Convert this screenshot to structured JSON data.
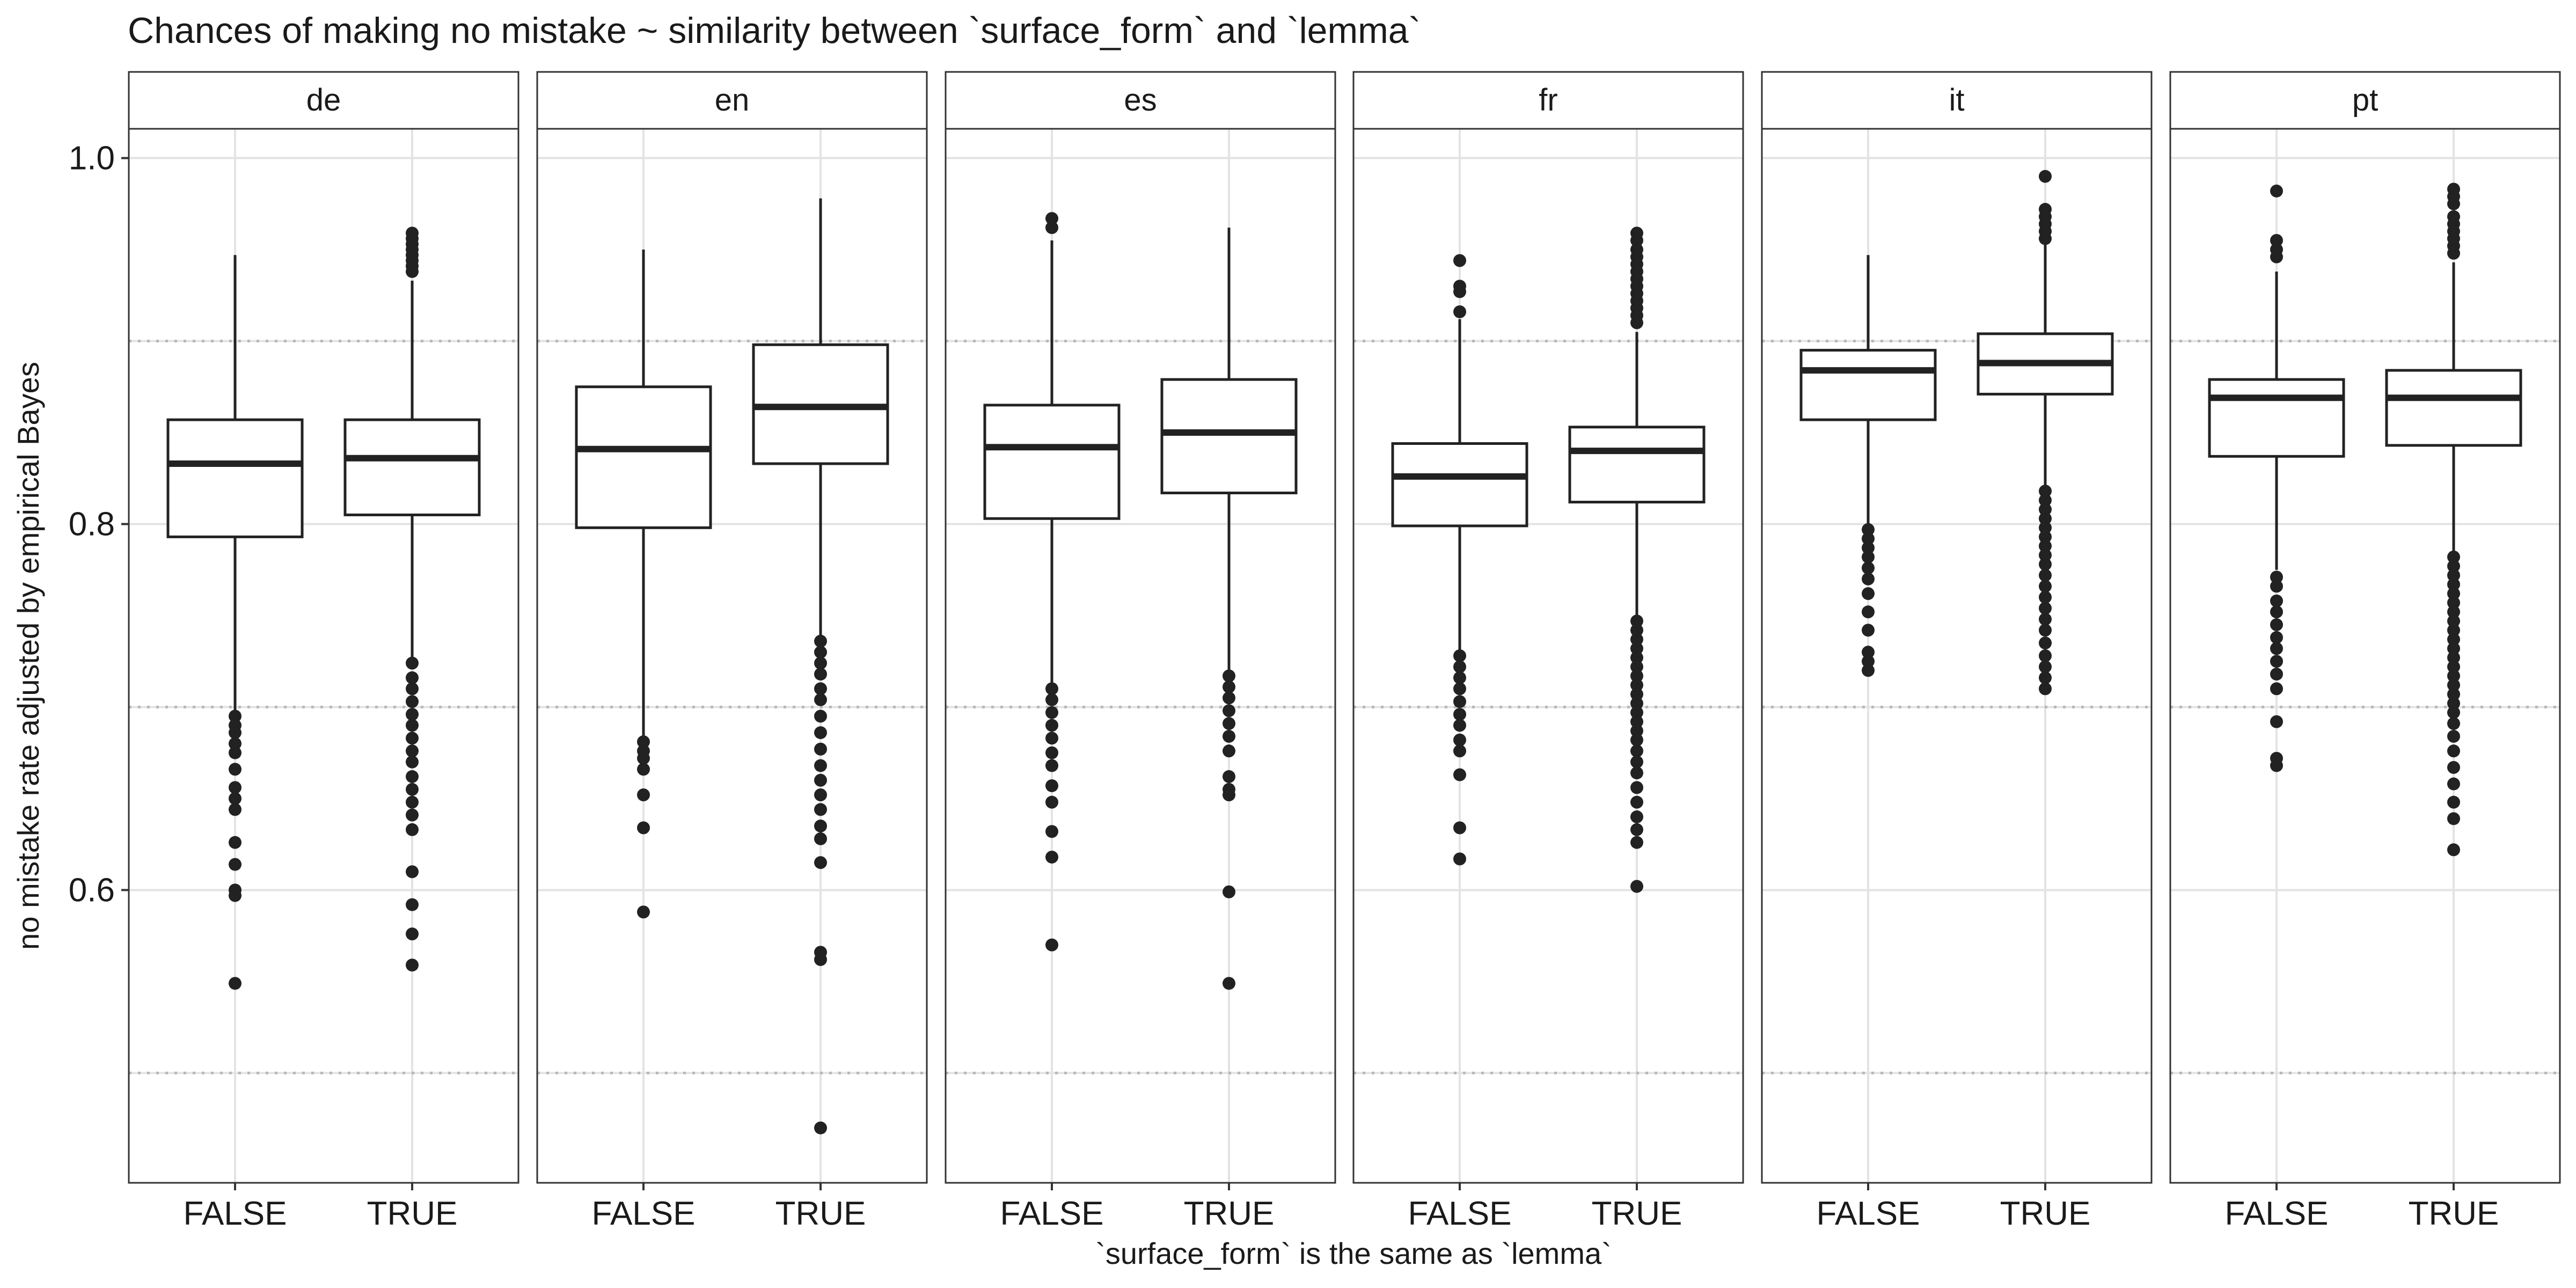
{
  "chart_data": {
    "type": "boxplot",
    "title": "Chances of making no mistake ~ similarity between `surface_form` and `lemma`",
    "xlabel": "`surface_form` is the same as `lemma`",
    "ylabel": "no mistake rate adjusted by empirical Bayes",
    "ylim": [
      0.44,
      1.016
    ],
    "y_ticks": [
      0.6,
      0.8,
      1.0
    ],
    "y_tick_labels": [
      "0.6",
      "0.8",
      "1.0"
    ],
    "reference_lines": [
      0.5,
      0.7,
      0.9
    ],
    "categories": [
      "FALSE",
      "TRUE"
    ],
    "facets": [
      {
        "label": "de",
        "boxes": [
          {
            "category": "FALSE",
            "lower_whisker": 0.697,
            "q1": 0.793,
            "median": 0.833,
            "q3": 0.857,
            "upper_whisker": 0.947,
            "outliers": [
              0.695,
              0.69,
              0.686,
              0.68,
              0.675,
              0.666,
              0.656,
              0.65,
              0.644,
              0.626,
              0.614,
              0.6,
              0.597,
              0.549
            ]
          },
          {
            "category": "TRUE",
            "lower_whisker": 0.727,
            "q1": 0.805,
            "median": 0.836,
            "q3": 0.857,
            "upper_whisker": 0.933,
            "outliers": [
              0.959,
              0.956,
              0.953,
              0.95,
              0.947,
              0.944,
              0.941,
              0.938,
              0.724,
              0.716,
              0.71,
              0.703,
              0.696,
              0.69,
              0.683,
              0.676,
              0.67,
              0.662,
              0.655,
              0.648,
              0.641,
              0.633,
              0.61,
              0.592,
              0.576,
              0.559
            ]
          }
        ]
      },
      {
        "label": "en",
        "boxes": [
          {
            "category": "FALSE",
            "lower_whisker": 0.683,
            "q1": 0.798,
            "median": 0.841,
            "q3": 0.875,
            "upper_whisker": 0.95,
            "outliers": [
              0.681,
              0.676,
              0.672,
              0.666,
              0.652,
              0.634,
              0.588
            ]
          },
          {
            "category": "TRUE",
            "lower_whisker": 0.738,
            "q1": 0.833,
            "median": 0.864,
            "q3": 0.898,
            "upper_whisker": 0.978,
            "outliers": [
              0.736,
              0.73,
              0.724,
              0.718,
              0.71,
              0.704,
              0.695,
              0.686,
              0.677,
              0.668,
              0.66,
              0.652,
              0.644,
              0.635,
              0.628,
              0.615,
              0.566,
              0.562,
              0.47
            ]
          }
        ]
      },
      {
        "label": "es",
        "boxes": [
          {
            "category": "FALSE",
            "lower_whisker": 0.713,
            "q1": 0.803,
            "median": 0.842,
            "q3": 0.865,
            "upper_whisker": 0.955,
            "outliers": [
              0.967,
              0.962,
              0.71,
              0.704,
              0.697,
              0.69,
              0.683,
              0.675,
              0.668,
              0.657,
              0.648,
              0.632,
              0.618,
              0.57
            ]
          },
          {
            "category": "TRUE",
            "lower_whisker": 0.72,
            "q1": 0.817,
            "median": 0.85,
            "q3": 0.879,
            "upper_whisker": 0.962,
            "outliers": [
              0.717,
              0.711,
              0.705,
              0.698,
              0.691,
              0.684,
              0.676,
              0.662,
              0.655,
              0.652,
              0.599,
              0.549
            ]
          }
        ]
      },
      {
        "label": "fr",
        "boxes": [
          {
            "category": "FALSE",
            "lower_whisker": 0.73,
            "q1": 0.799,
            "median": 0.826,
            "q3": 0.844,
            "upper_whisker": 0.912,
            "outliers": [
              0.944,
              0.93,
              0.927,
              0.916,
              0.728,
              0.722,
              0.716,
              0.71,
              0.703,
              0.696,
              0.69,
              0.682,
              0.676,
              0.663,
              0.634,
              0.617
            ]
          },
          {
            "category": "TRUE",
            "lower_whisker": 0.75,
            "q1": 0.812,
            "median": 0.84,
            "q3": 0.853,
            "upper_whisker": 0.905,
            "outliers": [
              0.959,
              0.955,
              0.95,
              0.946,
              0.942,
              0.938,
              0.934,
              0.93,
              0.926,
              0.922,
              0.918,
              0.914,
              0.91,
              0.747,
              0.742,
              0.737,
              0.732,
              0.727,
              0.722,
              0.717,
              0.712,
              0.707,
              0.702,
              0.697,
              0.692,
              0.687,
              0.682,
              0.676,
              0.67,
              0.664,
              0.656,
              0.648,
              0.64,
              0.633,
              0.626,
              0.602
            ]
          }
        ]
      },
      {
        "label": "it",
        "boxes": [
          {
            "category": "FALSE",
            "lower_whisker": 0.8,
            "q1": 0.857,
            "median": 0.884,
            "q3": 0.895,
            "upper_whisker": 0.947,
            "outliers": [
              0.797,
              0.792,
              0.787,
              0.782,
              0.776,
              0.77,
              0.762,
              0.752,
              0.742,
              0.73,
              0.725,
              0.72
            ]
          },
          {
            "category": "TRUE",
            "lower_whisker": 0.82,
            "q1": 0.871,
            "median": 0.888,
            "q3": 0.904,
            "upper_whisker": 0.955,
            "outliers": [
              0.99,
              0.972,
              0.968,
              0.964,
              0.96,
              0.956,
              0.818,
              0.813,
              0.808,
              0.803,
              0.798,
              0.793,
              0.788,
              0.783,
              0.778,
              0.772,
              0.766,
              0.76,
              0.754,
              0.748,
              0.742,
              0.735,
              0.728,
              0.722,
              0.716,
              0.71
            ]
          }
        ]
      },
      {
        "label": "pt",
        "boxes": [
          {
            "category": "FALSE",
            "lower_whisker": 0.775,
            "q1": 0.837,
            "median": 0.869,
            "q3": 0.879,
            "upper_whisker": 0.938,
            "outliers": [
              0.982,
              0.955,
              0.95,
              0.946,
              0.771,
              0.766,
              0.758,
              0.752,
              0.745,
              0.738,
              0.732,
              0.725,
              0.718,
              0.71,
              0.692,
              0.672,
              0.668
            ]
          },
          {
            "category": "TRUE",
            "lower_whisker": 0.785,
            "q1": 0.843,
            "median": 0.869,
            "q3": 0.884,
            "upper_whisker": 0.943,
            "outliers": [
              0.983,
              0.979,
              0.975,
              0.968,
              0.964,
              0.96,
              0.956,
              0.952,
              0.948,
              0.782,
              0.777,
              0.772,
              0.767,
              0.762,
              0.757,
              0.752,
              0.747,
              0.742,
              0.737,
              0.732,
              0.727,
              0.722,
              0.717,
              0.712,
              0.707,
              0.702,
              0.697,
              0.691,
              0.684,
              0.676,
              0.667,
              0.658,
              0.648,
              0.639,
              0.622
            ]
          }
        ]
      }
    ]
  }
}
